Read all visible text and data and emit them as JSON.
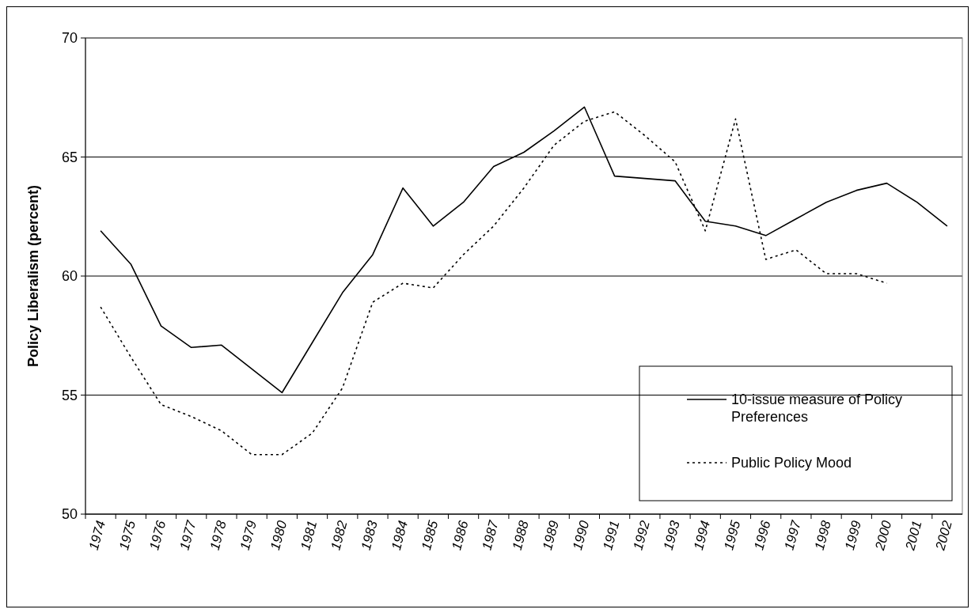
{
  "chart_data": {
    "type": "line",
    "ylabel": "Policy Liberalism (percent)",
    "categories": [
      "1974",
      "1975",
      "1976",
      "1977",
      "1978",
      "1979",
      "1980",
      "1981",
      "1982",
      "1983",
      "1984",
      "1985",
      "1986",
      "1987",
      "1988",
      "1989",
      "1990",
      "1991",
      "1992",
      "1993",
      "1994",
      "1995",
      "1996",
      "1997",
      "1998",
      "1999",
      "2000",
      "2001",
      "2002"
    ],
    "series": [
      {
        "name": "10-issue measure of Policy Preferences",
        "color": "#000000",
        "line_style": "solid",
        "values": [
          61.9,
          60.5,
          57.9,
          57.0,
          57.1,
          56.1,
          55.1,
          57.2,
          59.3,
          60.9,
          63.7,
          62.1,
          63.1,
          64.6,
          65.2,
          66.1,
          67.1,
          64.2,
          64.1,
          64.0,
          62.3,
          62.1,
          61.7,
          62.4,
          63.1,
          63.6,
          63.9,
          63.1,
          62.1
        ]
      },
      {
        "name": "Public Policy Mood",
        "color": "#000000",
        "line_style": "dotted",
        "values": [
          58.7,
          56.6,
          54.6,
          54.1,
          53.5,
          52.5,
          52.5,
          53.4,
          55.3,
          58.9,
          59.7,
          59.5,
          60.9,
          62.1,
          63.7,
          65.5,
          66.5,
          66.9,
          65.9,
          64.8,
          61.9,
          66.6,
          60.7,
          61.1,
          60.1,
          60.1,
          59.7,
          null,
          null
        ]
      }
    ],
    "ylim": [
      50,
      70
    ],
    "yticks": [
      50,
      55,
      60,
      65,
      70
    ],
    "grid": "y",
    "legend": "bottom right",
    "marker": "none"
  }
}
